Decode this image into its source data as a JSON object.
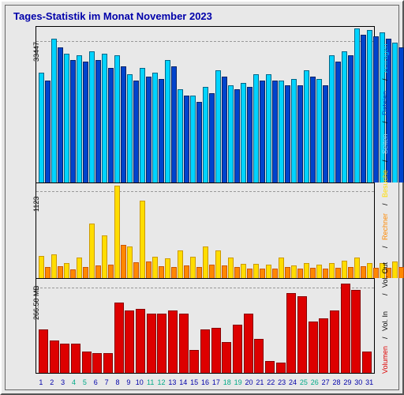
{
  "title": "Tages-Statistik im Monat November 2023",
  "background_color": "#e8e8e8",
  "days": 31,
  "weekend_days": [
    4,
    5,
    11,
    12,
    18,
    19,
    25,
    26
  ],
  "weekend_label_color": "#00aa88",
  "xlabel_color": "#0000aa",
  "panels": [
    {
      "id": "hits",
      "ylabel": "33447",
      "ymax": 37000,
      "gridlines": [
        33447
      ],
      "series": [
        {
          "color_fill": "#00d4ff",
          "color_stroke": "#006688",
          "values": [
            26000,
            34000,
            30500,
            30000,
            31000,
            30500,
            30000,
            25500,
            27000,
            26000,
            29000,
            22000,
            20500,
            22500,
            26500,
            23000,
            23500,
            25500,
            25500,
            24000,
            24500,
            26500,
            24500,
            30000,
            31000,
            36500,
            36000,
            35500,
            33000,
            35500,
            35500
          ]
        },
        {
          "color_fill": "#0044cc",
          "color_stroke": "#002266",
          "values": [
            24000,
            32000,
            29000,
            28500,
            29000,
            27000,
            27500,
            24000,
            25000,
            24500,
            27500,
            20500,
            19000,
            21000,
            25000,
            22000,
            22500,
            24000,
            24000,
            23000,
            23000,
            25000,
            23000,
            28500,
            30000,
            35000,
            34500,
            34000,
            32000,
            34500,
            34000
          ]
        }
      ]
    },
    {
      "id": "visits",
      "ylabel": "1123",
      "ymax": 1250,
      "gridlines": [
        1123
      ],
      "series": [
        {
          "color_fill": "#ffdd00",
          "color_stroke": "#cc9900",
          "values": [
            280,
            300,
            180,
            250,
            700,
            550,
            1200,
            400,
            1000,
            260,
            240,
            350,
            260,
            400,
            350,
            250,
            170,
            170,
            160,
            250,
            150,
            180,
            160,
            180,
            210,
            250,
            180,
            180,
            200,
            200,
            220
          ]
        },
        {
          "color_fill": "#ff8800",
          "color_stroke": "#cc5500",
          "values": [
            130,
            140,
            100,
            130,
            150,
            160,
            420,
            190,
            200,
            140,
            130,
            150,
            130,
            160,
            150,
            130,
            110,
            110,
            110,
            130,
            110,
            120,
            110,
            120,
            130,
            140,
            120,
            120,
            130,
            130,
            140
          ]
        }
      ]
    },
    {
      "id": "volume",
      "ylabel": "266.50 MB",
      "ymax": 300,
      "gridlines": [
        266.5
      ],
      "series": [
        {
          "color_fill": "#dd0000",
          "color_stroke": "#880000",
          "values": [
            135,
            100,
            90,
            90,
            65,
            60,
            60,
            220,
            195,
            200,
            185,
            185,
            195,
            185,
            70,
            135,
            140,
            95,
            150,
            185,
            105,
            35,
            30,
            250,
            240,
            160,
            170,
            195,
            280,
            260,
            65
          ]
        }
      ]
    }
  ],
  "legend": [
    {
      "label": "Anfragen",
      "color": "#00d4ff"
    },
    {
      "label": "Dateien",
      "color": "#0044cc"
    },
    {
      "label": "Seiten",
      "color": "#88ddff"
    },
    {
      "label": "Besuche",
      "color": "#ffdd00"
    },
    {
      "label": "Rechner",
      "color": "#ff8800"
    },
    {
      "label": "Vol. Out",
      "color": "#000000"
    },
    {
      "label": "Vol. In",
      "color": "#000000"
    },
    {
      "label": "Volumen",
      "color": "#dd0000"
    }
  ]
}
